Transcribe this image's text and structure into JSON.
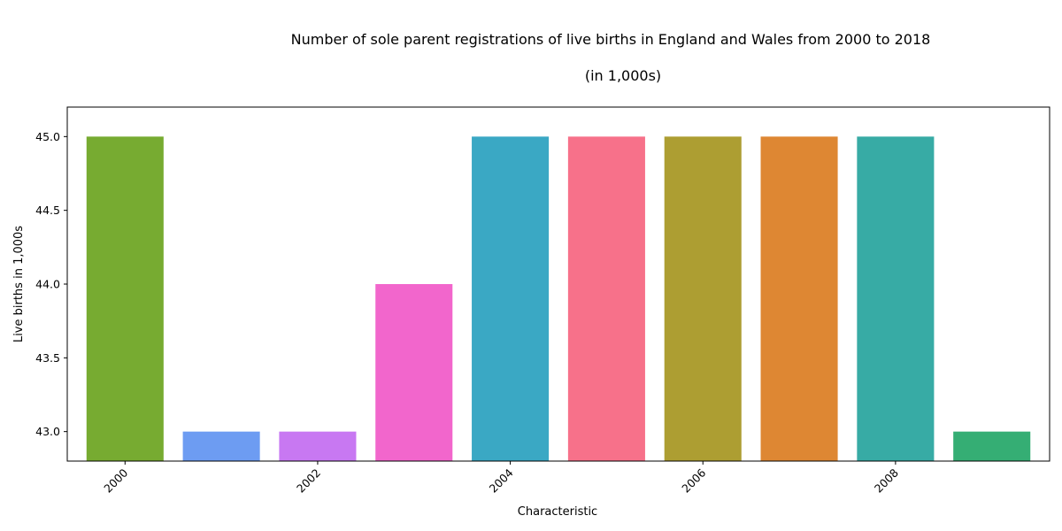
{
  "chart_data": {
    "type": "bar",
    "title": "Number of sole parent registrations of live births in England and Wales from 2000 to 2018",
    "subtitle": "(in 1,000s)",
    "xlabel": "Characteristic",
    "ylabel": "Live births in 1,000s",
    "categories": [
      2000,
      2001,
      2002,
      2003,
      2004,
      2005,
      2006,
      2007,
      2008,
      2009
    ],
    "values": [
      45,
      43,
      43,
      44,
      45,
      45,
      45,
      45,
      45,
      43
    ],
    "colors": [
      "#77ab31",
      "#6d9cf2",
      "#c878f2",
      "#f266cc",
      "#3aa8c4",
      "#f7718a",
      "#ad9e32",
      "#de8733",
      "#37ab a5",
      "#35ae74"
    ],
    "ylim": [
      42.8,
      45.2
    ],
    "xlim": [
      1999.4,
      2009.6
    ],
    "yticks": [
      43.0,
      43.5,
      44.0,
      44.5,
      45.0
    ],
    "ytick_labels": [
      "43.0",
      "43.5",
      "44.0",
      "44.5",
      "45.0"
    ],
    "xticks": [
      2000,
      2002,
      2004,
      2006,
      2008
    ],
    "xtick_labels": [
      "2000",
      "2002",
      "2004",
      "2006",
      "2008"
    ],
    "grid": false,
    "legend": "none"
  }
}
